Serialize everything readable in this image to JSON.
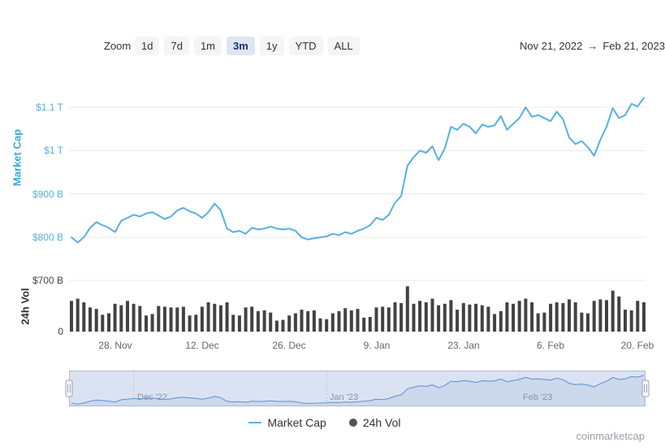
{
  "toolbar": {
    "zoom_label": "Zoom",
    "buttons": [
      "1d",
      "7d",
      "1m",
      "3m",
      "1y",
      "YTD",
      "ALL"
    ],
    "selected": "3m",
    "range": {
      "from": "Nov 21, 2022",
      "arrow": "→",
      "to": "Feb 21, 2023"
    }
  },
  "axes": {
    "market_cap": {
      "title": "Market Cap",
      "ticks": [
        "$1.1 T",
        "$1 T",
        "$900 B",
        "$800 B"
      ]
    },
    "volume": {
      "title": "24h Vol",
      "ticks": [
        "$700 B",
        "0"
      ]
    },
    "x_ticks": [
      "28. Nov",
      "12. Dec",
      "26. Dec",
      "9. Jan",
      "23. Jan",
      "6. Feb",
      "20. Feb"
    ]
  },
  "navigator": {
    "labels": [
      "Dec '22",
      "Jan '23",
      "Feb '23"
    ]
  },
  "legend": {
    "items": [
      {
        "label": "Market Cap"
      },
      {
        "label": "24h Vol"
      }
    ]
  },
  "watermark": "coinmarketcap",
  "colors": {
    "line": "#57b1e1",
    "axis_blue": "#57b1e1",
    "bars": "#424242",
    "grid": "#e8e8e8",
    "navigator_bg": "#dbe3f2",
    "navigator_area": "#ccd8ec",
    "navigator_line": "#5b90d0",
    "selected_button_bg": "#dde6f3"
  },
  "chart_data": {
    "type": "line",
    "title": "",
    "xlabel": "",
    "x_range": [
      "Nov 21, 2022",
      "Feb 21, 2023"
    ],
    "legend": [
      "Market Cap",
      "24h Vol"
    ],
    "x": [
      "2022-11-21",
      "2022-11-22",
      "2022-11-23",
      "2022-11-24",
      "2022-11-25",
      "2022-11-26",
      "2022-11-27",
      "2022-11-28",
      "2022-11-29",
      "2022-11-30",
      "2022-12-01",
      "2022-12-02",
      "2022-12-03",
      "2022-12-04",
      "2022-12-05",
      "2022-12-06",
      "2022-12-07",
      "2022-12-08",
      "2022-12-09",
      "2022-12-10",
      "2022-12-11",
      "2022-12-12",
      "2022-12-13",
      "2022-12-14",
      "2022-12-15",
      "2022-12-16",
      "2022-12-17",
      "2022-12-18",
      "2022-12-19",
      "2022-12-20",
      "2022-12-21",
      "2022-12-22",
      "2022-12-23",
      "2022-12-24",
      "2022-12-25",
      "2022-12-26",
      "2022-12-27",
      "2022-12-28",
      "2022-12-29",
      "2022-12-30",
      "2022-12-31",
      "2023-01-01",
      "2023-01-02",
      "2023-01-03",
      "2023-01-04",
      "2023-01-05",
      "2023-01-06",
      "2023-01-07",
      "2023-01-08",
      "2023-01-09",
      "2023-01-10",
      "2023-01-11",
      "2023-01-12",
      "2023-01-13",
      "2023-01-14",
      "2023-01-15",
      "2023-01-16",
      "2023-01-17",
      "2023-01-18",
      "2023-01-19",
      "2023-01-20",
      "2023-01-21",
      "2023-01-22",
      "2023-01-23",
      "2023-01-24",
      "2023-01-25",
      "2023-01-26",
      "2023-01-27",
      "2023-01-28",
      "2023-01-29",
      "2023-01-30",
      "2023-01-31",
      "2023-02-01",
      "2023-02-02",
      "2023-02-03",
      "2023-02-04",
      "2023-02-05",
      "2023-02-06",
      "2023-02-07",
      "2023-02-08",
      "2023-02-09",
      "2023-02-10",
      "2023-02-11",
      "2023-02-12",
      "2023-02-13",
      "2023-02-14",
      "2023-02-15",
      "2023-02-16",
      "2023-02-17",
      "2023-02-18",
      "2023-02-19",
      "2023-02-20",
      "2023-02-21"
    ],
    "series": [
      {
        "name": "Market Cap",
        "type": "line",
        "unit": "USD billions",
        "ylim": [
          740,
          1170
        ],
        "axis_ticks": [
          1100,
          1000,
          900,
          800
        ],
        "values": [
          800,
          788,
          800,
          822,
          835,
          828,
          822,
          812,
          838,
          845,
          852,
          848,
          855,
          858,
          850,
          842,
          848,
          862,
          868,
          860,
          855,
          845,
          858,
          878,
          862,
          820,
          812,
          815,
          808,
          822,
          818,
          820,
          825,
          820,
          818,
          820,
          815,
          800,
          795,
          798,
          800,
          802,
          808,
          805,
          812,
          808,
          815,
          820,
          828,
          845,
          840,
          852,
          880,
          895,
          965,
          985,
          1000,
          995,
          1010,
          978,
          1005,
          1055,
          1048,
          1062,
          1055,
          1040,
          1060,
          1055,
          1058,
          1080,
          1048,
          1062,
          1075,
          1100,
          1078,
          1082,
          1075,
          1068,
          1090,
          1072,
          1030,
          1015,
          1022,
          1008,
          988,
          1025,
          1055,
          1098,
          1075,
          1082,
          1108,
          1102,
          1122
        ]
      },
      {
        "name": "24h Vol",
        "type": "bar",
        "unit": "USD billions",
        "ylim": [
          0,
          700
        ],
        "axis_ticks": [
          700,
          0
        ],
        "values": [
          420,
          450,
          400,
          330,
          310,
          230,
          250,
          380,
          360,
          420,
          380,
          350,
          220,
          240,
          350,
          340,
          330,
          330,
          340,
          220,
          230,
          340,
          400,
          380,
          360,
          400,
          230,
          220,
          330,
          340,
          280,
          290,
          260,
          150,
          160,
          220,
          250,
          300,
          280,
          290,
          180,
          170,
          250,
          280,
          320,
          290,
          310,
          190,
          200,
          330,
          340,
          330,
          400,
          390,
          620,
          380,
          420,
          400,
          450,
          360,
          380,
          430,
          300,
          390,
          370,
          380,
          360,
          340,
          240,
          280,
          400,
          380,
          420,
          450,
          400,
          250,
          260,
          380,
          400,
          390,
          440,
          400,
          260,
          250,
          420,
          440,
          430,
          560,
          480,
          300,
          290,
          420,
          400
        ]
      }
    ]
  }
}
